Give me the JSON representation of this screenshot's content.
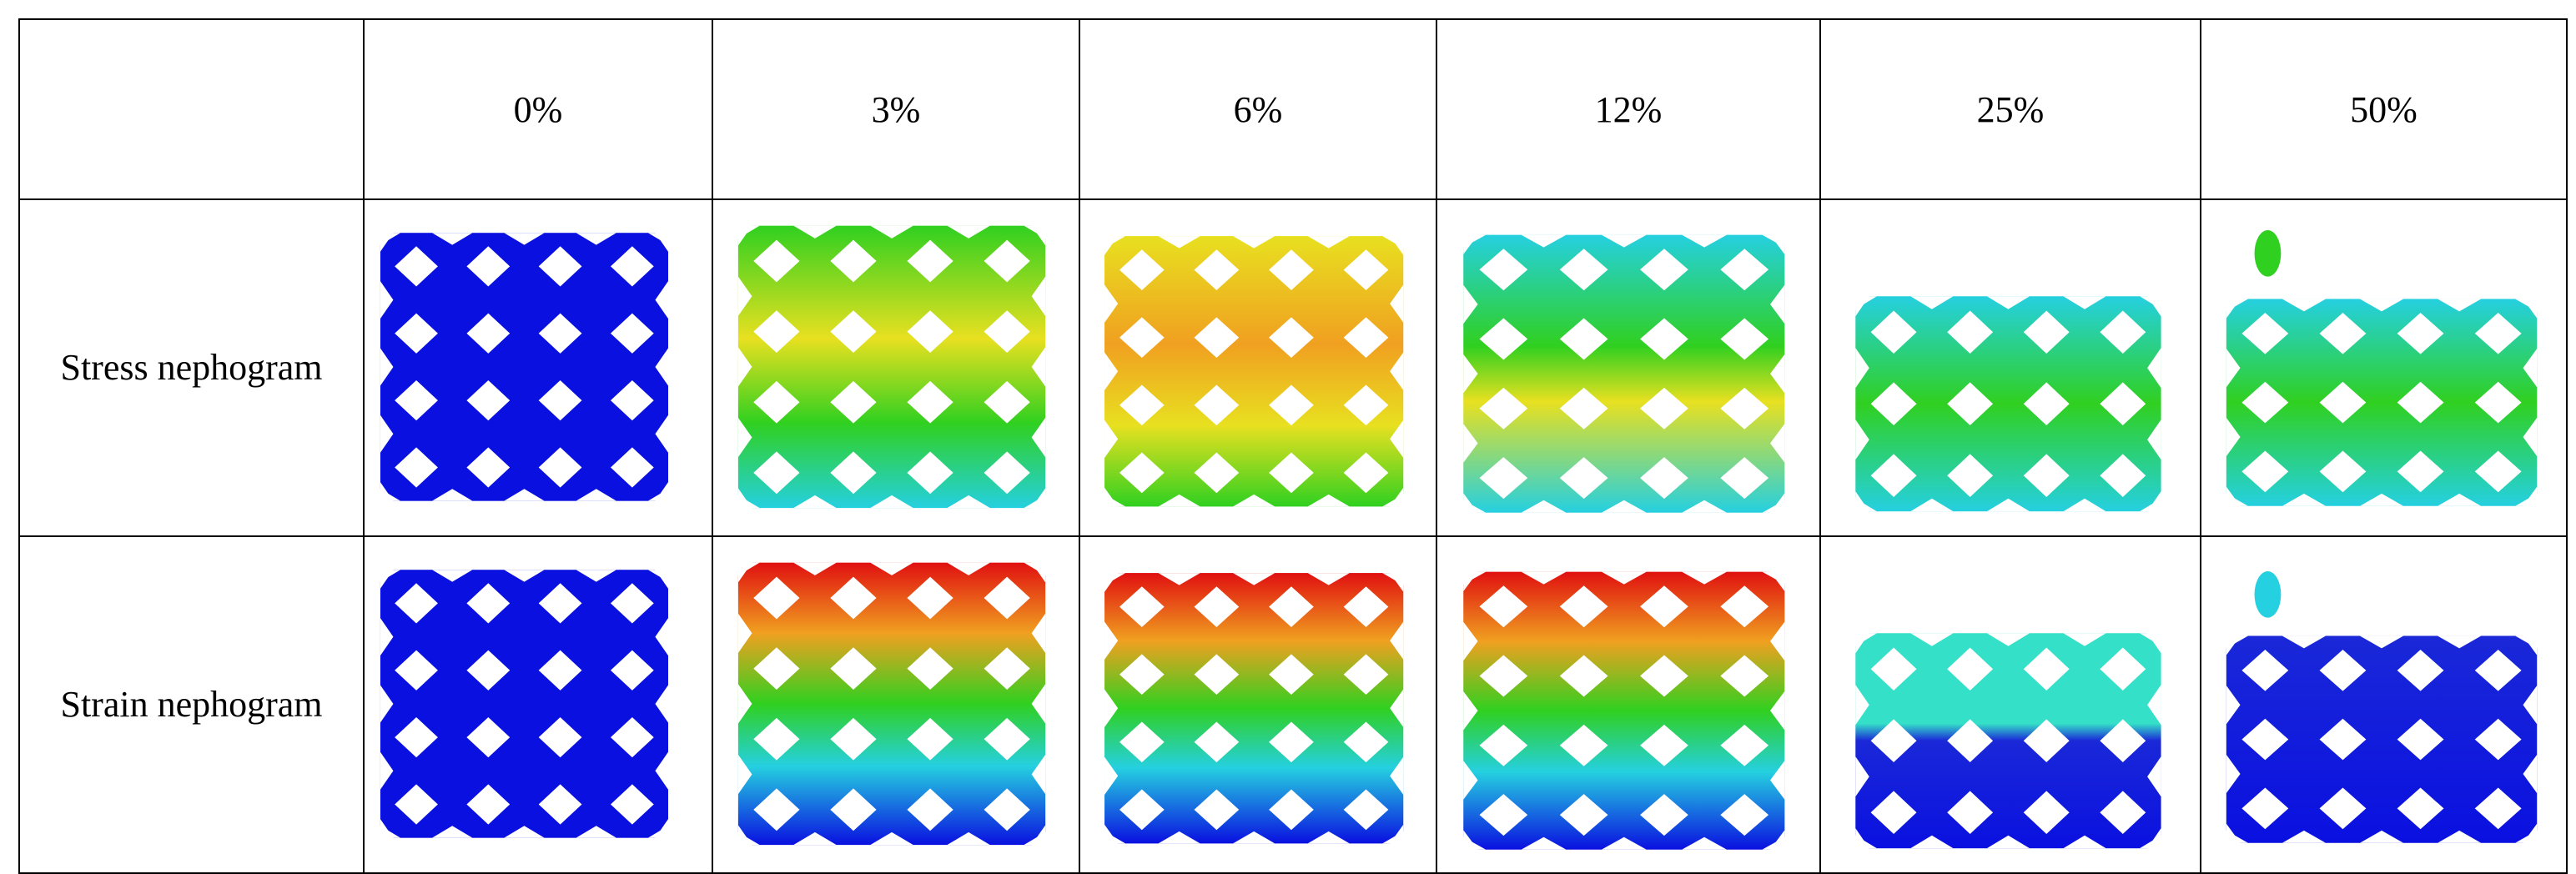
{
  "table": {
    "strains": [
      "0%",
      "3%",
      "6%",
      "12%",
      "25%",
      "50%"
    ],
    "rows": [
      {
        "label": "Stress nephogram",
        "kind": "stress"
      },
      {
        "label": "Strain nephogram",
        "kind": "strain"
      }
    ]
  },
  "colors": {
    "blue": "#0a10e0",
    "deep_blue": "#1a28d8",
    "cyan": "#25d0e0",
    "teal": "#35e0c8",
    "green": "#30d020",
    "yellow": "#e8e020",
    "orange": "#f0a020",
    "red": "#e01010",
    "hole": "#ffffff"
  }
}
